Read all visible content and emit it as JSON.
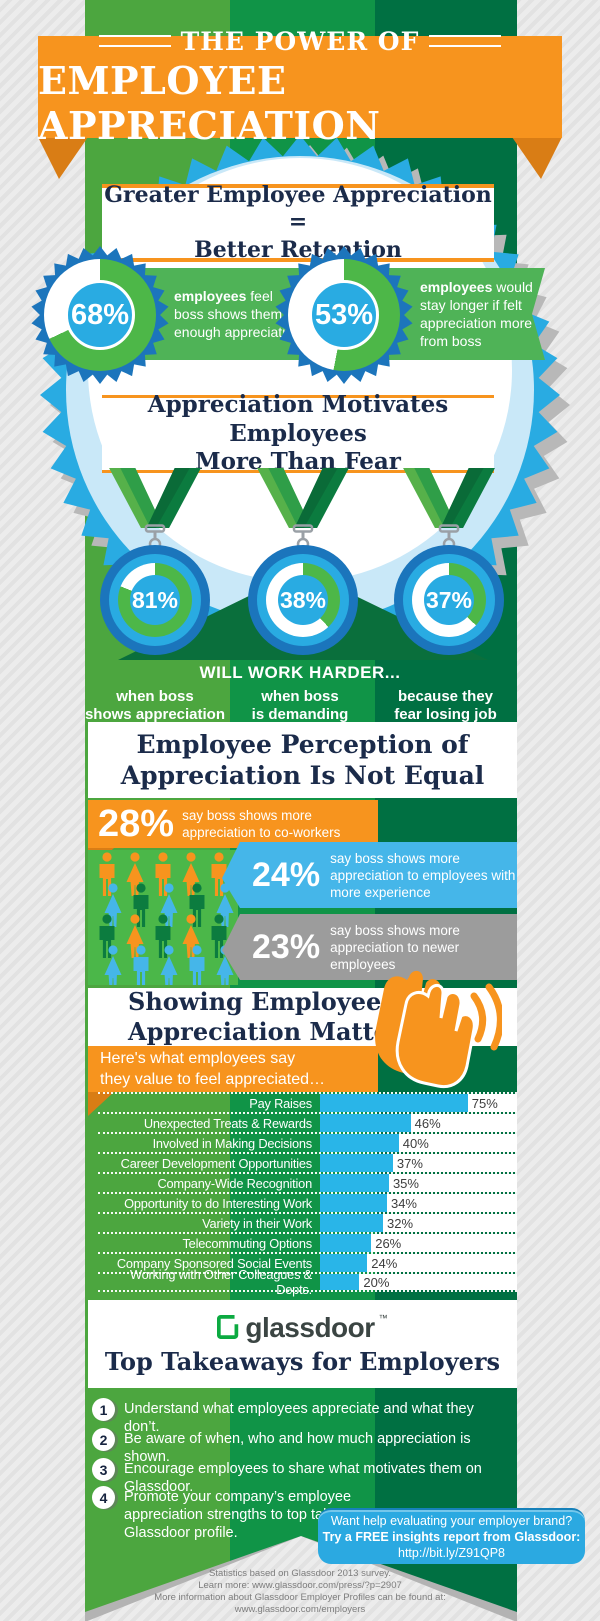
{
  "header": {
    "kicker": "THE POWER OF",
    "title": "EMPLOYEE APPRECIATION"
  },
  "retention": {
    "heading_line1": "Greater Employee Appreciation =",
    "heading_line2": "Better Retention",
    "stats": [
      {
        "value": 68,
        "label": "68%",
        "term": "employees",
        "desc": "feel boss shows them enough appreciation"
      },
      {
        "value": 53,
        "label": "53%",
        "term": "employees",
        "desc": "would stay longer if felt appreciation more from boss"
      }
    ]
  },
  "motivation": {
    "heading_line1": "Appreciation Motivates Employees",
    "heading_line2": "More Than Fear",
    "subtitle": "WILL WORK HARDER...",
    "medals": [
      {
        "value": 81,
        "label": "81%",
        "caption_line1": "when boss",
        "caption_line2": "shows appreciation"
      },
      {
        "value": 38,
        "label": "38%",
        "caption_line1": "when boss",
        "caption_line2": "is demanding"
      },
      {
        "value": 37,
        "label": "37%",
        "caption_line1": "because they",
        "caption_line2": "fear losing job"
      }
    ]
  },
  "perception": {
    "heading_line1": "Employee Perception of",
    "heading_line2": "Appreciation Is Not Equal",
    "blocks": [
      {
        "value": "28%",
        "desc": "say boss shows more appreciation to co-workers"
      },
      {
        "value": "24%",
        "desc": "say boss shows more appreciation to employees with more experience"
      },
      {
        "value": "23%",
        "desc": "say boss shows more appreciation to newer employees"
      }
    ],
    "crowd_rows": [
      [
        "orange",
        "orange",
        "orange",
        "orange",
        "orange"
      ],
      [
        "blue",
        "green",
        "blue",
        "green",
        "blue"
      ],
      [
        "green",
        "orange",
        "green",
        "orange",
        "green"
      ],
      [
        "blue",
        "blue",
        "blue",
        "blue",
        "blue"
      ]
    ],
    "crowd_colors": {
      "orange": "#f7941e",
      "blue": "#45b6e9",
      "green": "#0c7c3f"
    }
  },
  "value_section": {
    "heading_line1": "Showing Employees",
    "heading_line2": "Appreciation Matters",
    "intro_line1": "Here's what employees say",
    "intro_line2": "they value to feel appreciated…"
  },
  "chart_data": {
    "type": "bar",
    "title": "What employees say they value to feel appreciated",
    "categories": [
      "Pay Raises",
      "Unexpected Treats & Rewards",
      "Involved in Making Decisions",
      "Career Development Opportunities",
      "Company-Wide Recognition",
      "Opportunity to do Interesting Work",
      "Variety in their Work",
      "Telecommuting Options",
      "Company Sponsored Social Events",
      "Working with Other Colleagues & Depts."
    ],
    "values": [
      75,
      46,
      40,
      37,
      35,
      34,
      32,
      26,
      24,
      20
    ],
    "value_labels": [
      "75%",
      "46%",
      "40%",
      "37%",
      "35%",
      "34%",
      "32%",
      "26%",
      "24%",
      "20%"
    ],
    "xlim": [
      0,
      100
    ],
    "bar_color": "#29b5e8",
    "orientation": "horizontal",
    "grid": false
  },
  "takeaways": {
    "logo_text": "glassdoor",
    "logo_tm": "™",
    "heading": "Top Takeaways for Employers",
    "items": [
      {
        "num": "1",
        "text": "Understand what employees appreciate and what they don’t."
      },
      {
        "num": "2",
        "text": "Be aware of when, who and how much appreciation is shown."
      },
      {
        "num": "3",
        "text": "Encourage employees to share what motivates them on Glassdoor."
      },
      {
        "num": "4",
        "text": "Promote your company’s employee appreciation strengths to top talent via a Glassdoor profile."
      }
    ]
  },
  "cta": {
    "line1": "Want help evaluating your employer brand?",
    "line2": "Try a FREE insights report from Glassdoor:",
    "line3": "http://bit.ly/Z91QP8"
  },
  "footer": {
    "lines": [
      "Statistics based on Glassdoor 2013 survey.",
      "Learn more: www.glassdoor.com/press/?p=2907",
      "More information about Glassdoor Employer Profiles can be found at:",
      "www.glassdoor.com/employers"
    ]
  },
  "colors": {
    "orange": "#f7941e",
    "bright_blue": "#29abe2",
    "dark_blue": "#1b75bc",
    "green_arc": "#4db748",
    "light_green": "#4ca63f",
    "mid_green": "#109447",
    "dark_green": "#007042",
    "navy": "#1b2b4a",
    "bar_blue": "#29b5e8",
    "block_blue": "#45b6e9",
    "block_gray": "#9c9c9c",
    "glassdoor_green": "#0caa41"
  }
}
